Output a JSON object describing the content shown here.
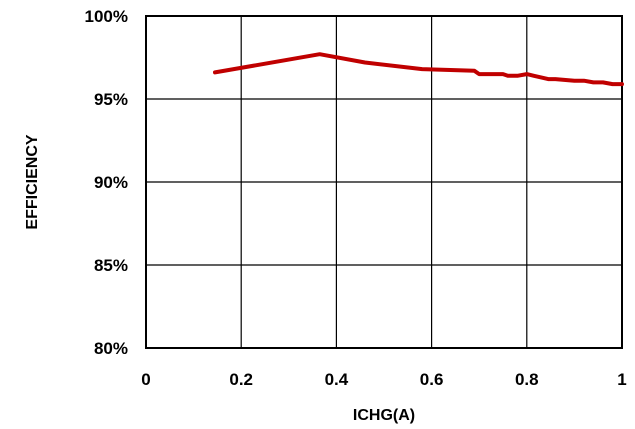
{
  "chart_data": {
    "type": "line",
    "title": "",
    "xlabel": "ICHG(A)",
    "ylabel": "EFFICIENCY",
    "xlim": [
      0,
      1
    ],
    "ylim": [
      80,
      100
    ],
    "x_ticks": [
      0,
      0.2,
      0.4,
      0.6,
      0.8,
      1
    ],
    "x_tick_labels": [
      "0",
      "0.2",
      "0.4",
      "0.6",
      "0.8",
      "1"
    ],
    "y_ticks": [
      80,
      85,
      90,
      95,
      100
    ],
    "y_tick_labels": [
      "80%",
      "85%",
      "90%",
      "95%",
      "100%"
    ],
    "grid": true,
    "legend": "none",
    "series": [
      {
        "color": "#c00000",
        "x": [
          0.145,
          0.365,
          0.46,
          0.58,
          0.69,
          0.7,
          0.75,
          0.76,
          0.78,
          0.8,
          0.815,
          0.83,
          0.845,
          0.86,
          0.9,
          0.92,
          0.94,
          0.96,
          0.98,
          0.99,
          1.0
        ],
        "y": [
          96.6,
          97.7,
          97.2,
          96.8,
          96.7,
          96.5,
          96.5,
          96.4,
          96.4,
          96.5,
          96.4,
          96.3,
          96.2,
          96.2,
          96.1,
          96.1,
          96.0,
          96.0,
          95.9,
          95.9,
          95.9
        ]
      }
    ]
  }
}
